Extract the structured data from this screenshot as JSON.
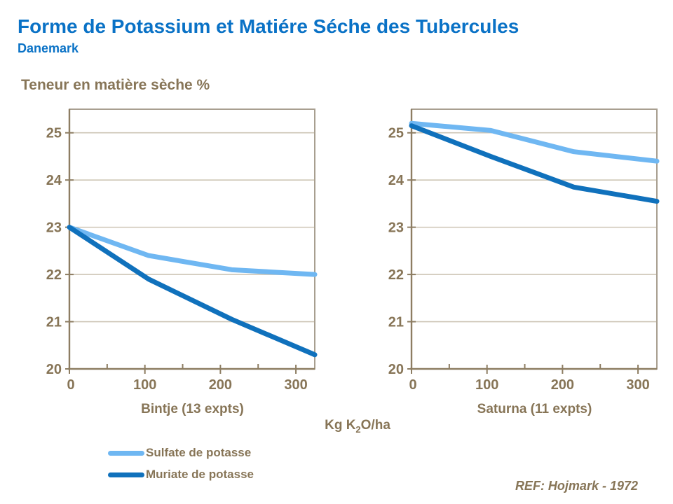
{
  "title": "Forme de Potassium et Matiére Séche des Tubercules",
  "subtitle": "Danemark",
  "y_axis_title": "Teneur en matière sèche %",
  "x_axis_title": {
    "pre": "Kg K",
    "sub": "2",
    "post": "O/ha"
  },
  "reference": "REF: Hojmark - 1972",
  "colors": {
    "title_blue": "#0a72c6",
    "text_brown": "#877557",
    "axis_line": "#8d7d62",
    "frame": "#a89f90",
    "grid": "#cdc5b5",
    "sulfate": "#6fb7f2",
    "muriate": "#1071bc"
  },
  "legend": [
    {
      "label": "Sulfate de potasse",
      "color": "#6fb7f2"
    },
    {
      "label": "Muriate de potasse",
      "color": "#1071bc"
    }
  ],
  "chart_data": [
    {
      "type": "line",
      "title": "Bintje (13 expts)",
      "xlabel": "Kg K2O/ha",
      "ylabel": "Teneur en matière sèche %",
      "xlim": [
        0,
        325
      ],
      "ylim": [
        20,
        25.5
      ],
      "x_ticks_major": [
        0,
        100,
        200,
        300
      ],
      "x_ticks_minor": [
        50,
        150,
        250
      ],
      "y_ticks": [
        20,
        21,
        22,
        23,
        24,
        25
      ],
      "grid": true,
      "x": [
        0,
        105,
        215,
        325
      ],
      "series": [
        {
          "name": "Sulfate de potasse",
          "color": "#6fb7f2",
          "values": [
            23.0,
            22.4,
            22.1,
            22.0
          ]
        },
        {
          "name": "Muriate de potasse",
          "color": "#1071bc",
          "values": [
            23.0,
            21.9,
            21.05,
            20.3
          ]
        }
      ]
    },
    {
      "type": "line",
      "title": "Saturna (11 expts)",
      "xlabel": "Kg K2O/ha",
      "ylabel": "Teneur en matière sèche %",
      "xlim": [
        0,
        325
      ],
      "ylim": [
        20,
        25.5
      ],
      "x_ticks_major": [
        0,
        100,
        200,
        300
      ],
      "x_ticks_minor": [
        50,
        150,
        250
      ],
      "y_ticks": [
        20,
        21,
        22,
        23,
        24,
        25
      ],
      "grid": true,
      "x": [
        0,
        105,
        215,
        325
      ],
      "series": [
        {
          "name": "Sulfate de potasse",
          "color": "#6fb7f2",
          "values": [
            25.2,
            25.05,
            24.6,
            24.4
          ]
        },
        {
          "name": "Muriate de potasse",
          "color": "#1071bc",
          "values": [
            25.15,
            24.5,
            23.85,
            23.55
          ]
        }
      ]
    }
  ]
}
